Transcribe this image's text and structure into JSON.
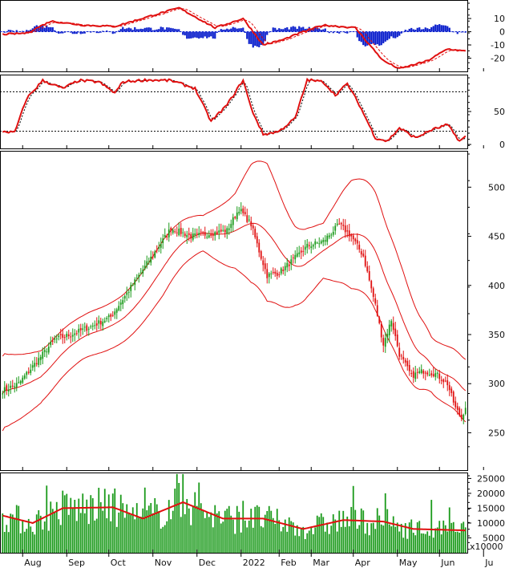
{
  "colors": {
    "up": "#1a9a1a",
    "down": "#e01010",
    "line": "#e01010",
    "hist": "#0a1ecc",
    "frame": "#000000",
    "guide": "#000000"
  },
  "x_axis": {
    "labels": [
      "Aug",
      "Sep",
      "Oct",
      "Nov",
      "Dec",
      "2022",
      "Feb",
      "Mar",
      "Apr",
      "May",
      "Jun",
      "Ju"
    ],
    "label_bars": [
      10,
      32,
      53,
      75,
      97,
      119,
      138,
      154,
      175,
      197,
      218,
      240
    ]
  },
  "panels": {
    "macd": {
      "ticks": [
        "10",
        "0",
        "-10",
        "-20"
      ],
      "tick_values": [
        10,
        0,
        -10,
        -20
      ],
      "ylim": [
        -30,
        24
      ]
    },
    "stoch": {
      "ticks": [
        "50",
        "0"
      ],
      "tick_values": [
        50,
        0
      ],
      "guides": [
        80,
        20
      ],
      "ylim": [
        -6,
        106
      ]
    },
    "price": {
      "ticks": [
        "500",
        "450",
        "400",
        "350",
        "300",
        "250"
      ],
      "tick_values": [
        500,
        450,
        400,
        350,
        300,
        250
      ],
      "ylim": [
        212,
        537
      ]
    },
    "volume": {
      "ticks": [
        "25000",
        "20000",
        "15000",
        "10000",
        "5000"
      ],
      "tick_values": [
        25000,
        20000,
        15000,
        10000,
        5000
      ],
      "unit_label": "x10000",
      "ylim": [
        0,
        27000
      ]
    }
  },
  "chart_data": {
    "type": "candlestick",
    "bar_count": 232,
    "price_anchors": [
      [
        0,
        293
      ],
      [
        8,
        300
      ],
      [
        16,
        320
      ],
      [
        26,
        345
      ],
      [
        34,
        350
      ],
      [
        44,
        358
      ],
      [
        54,
        368
      ],
      [
        64,
        398
      ],
      [
        74,
        428
      ],
      [
        84,
        458
      ],
      [
        94,
        450
      ],
      [
        104,
        453
      ],
      [
        112,
        456
      ],
      [
        118,
        478
      ],
      [
        124,
        462
      ],
      [
        128,
        435
      ],
      [
        132,
        410
      ],
      [
        138,
        413
      ],
      [
        146,
        428
      ],
      [
        152,
        440
      ],
      [
        160,
        445
      ],
      [
        168,
        462
      ],
      [
        174,
        450
      ],
      [
        180,
        430
      ],
      [
        186,
        380
      ],
      [
        190,
        340
      ],
      [
        194,
        365
      ],
      [
        198,
        330
      ],
      [
        204,
        308
      ],
      [
        210,
        313
      ],
      [
        216,
        310
      ],
      [
        222,
        300
      ],
      [
        226,
        275
      ],
      [
        229,
        265
      ],
      [
        231,
        277
      ]
    ],
    "volume_avg_anchors": [
      [
        0,
        12500
      ],
      [
        15,
        10000
      ],
      [
        30,
        15000
      ],
      [
        55,
        15300
      ],
      [
        70,
        11500
      ],
      [
        90,
        17000
      ],
      [
        110,
        11500
      ],
      [
        130,
        11500
      ],
      [
        150,
        8000
      ],
      [
        170,
        11000
      ],
      [
        190,
        10500
      ],
      [
        205,
        8000
      ],
      [
        232,
        7500
      ]
    ],
    "macd_anchors": [
      [
        0,
        -2
      ],
      [
        12,
        -1
      ],
      [
        24,
        8
      ],
      [
        40,
        5
      ],
      [
        56,
        4
      ],
      [
        74,
        12
      ],
      [
        88,
        18
      ],
      [
        106,
        3
      ],
      [
        120,
        10
      ],
      [
        130,
        -10
      ],
      [
        140,
        -6
      ],
      [
        150,
        0
      ],
      [
        160,
        5
      ],
      [
        176,
        3
      ],
      [
        182,
        -8
      ],
      [
        190,
        -22
      ],
      [
        198,
        -28
      ],
      [
        212,
        -22
      ],
      [
        222,
        -13
      ],
      [
        232,
        -15
      ]
    ],
    "stoch_anchors": [
      [
        0,
        20
      ],
      [
        6,
        18
      ],
      [
        12,
        70
      ],
      [
        20,
        97
      ],
      [
        30,
        85
      ],
      [
        38,
        97
      ],
      [
        48,
        95
      ],
      [
        56,
        78
      ],
      [
        60,
        95
      ],
      [
        72,
        98
      ],
      [
        84,
        97
      ],
      [
        96,
        85
      ],
      [
        104,
        35
      ],
      [
        112,
        60
      ],
      [
        120,
        98
      ],
      [
        124,
        55
      ],
      [
        130,
        15
      ],
      [
        138,
        20
      ],
      [
        146,
        40
      ],
      [
        152,
        98
      ],
      [
        160,
        95
      ],
      [
        166,
        75
      ],
      [
        172,
        92
      ],
      [
        178,
        60
      ],
      [
        186,
        10
      ],
      [
        192,
        5
      ],
      [
        198,
        25
      ],
      [
        206,
        10
      ],
      [
        214,
        22
      ],
      [
        222,
        30
      ],
      [
        228,
        5
      ],
      [
        231,
        12
      ]
    ],
    "bollinger_width_anchors": [
      [
        0,
        38
      ],
      [
        20,
        26
      ],
      [
        40,
        22
      ],
      [
        60,
        24
      ],
      [
        80,
        28
      ],
      [
        100,
        18
      ],
      [
        116,
        38
      ],
      [
        124,
        60
      ],
      [
        132,
        70
      ],
      [
        146,
        40
      ],
      [
        160,
        28
      ],
      [
        174,
        55
      ],
      [
        186,
        60
      ],
      [
        200,
        50
      ],
      [
        214,
        28
      ],
      [
        232,
        32
      ]
    ],
    "indicators": [
      "Bollinger Bands",
      "MACD",
      "Stochastic",
      "Volume with moving average"
    ]
  }
}
